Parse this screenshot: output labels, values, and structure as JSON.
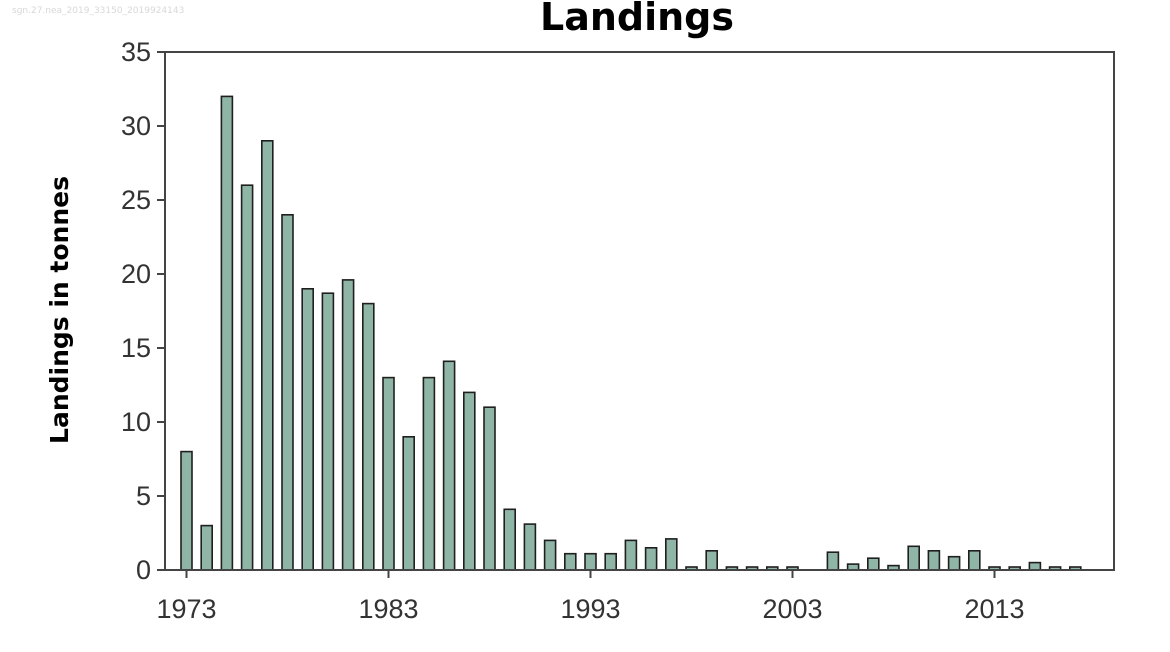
{
  "watermark": "sgn.27.nea_2019_33150_2019924143",
  "chart_data": {
    "type": "bar",
    "title": "Landings",
    "xlabel": "",
    "ylabel": "Landings in tonnes",
    "ylim": [
      0,
      35
    ],
    "yticks": [
      0,
      5,
      10,
      15,
      20,
      25,
      30,
      35
    ],
    "xtick_labels": [
      "1973",
      "1983",
      "1993",
      "2003",
      "2013"
    ],
    "bar_color": "#8fb5a6",
    "grid": false,
    "categories": [
      1973,
      1974,
      1975,
      1976,
      1977,
      1978,
      1979,
      1980,
      1981,
      1982,
      1983,
      1984,
      1985,
      1986,
      1987,
      1988,
      1989,
      1990,
      1991,
      1992,
      1993,
      1994,
      1995,
      1996,
      1997,
      1998,
      1999,
      2000,
      2001,
      2002,
      2003,
      2004,
      2005,
      2006,
      2007,
      2008,
      2009,
      2010,
      2011,
      2012,
      2013,
      2014,
      2015,
      2016,
      2017
    ],
    "values": [
      8,
      3,
      32,
      26,
      29,
      24,
      19,
      18.7,
      19.6,
      18,
      13,
      9,
      13,
      14.1,
      12,
      11,
      4.1,
      3.1,
      2,
      1.1,
      1.1,
      1.1,
      2,
      1.5,
      2.1,
      0.2,
      1.3,
      0.2,
      0.2,
      0.2,
      0.2,
      0,
      1.2,
      0.4,
      0.8,
      0.3,
      1.6,
      1.3,
      0.9,
      1.3,
      0.2,
      0.2,
      0.5,
      0.2,
      0.2
    ]
  }
}
